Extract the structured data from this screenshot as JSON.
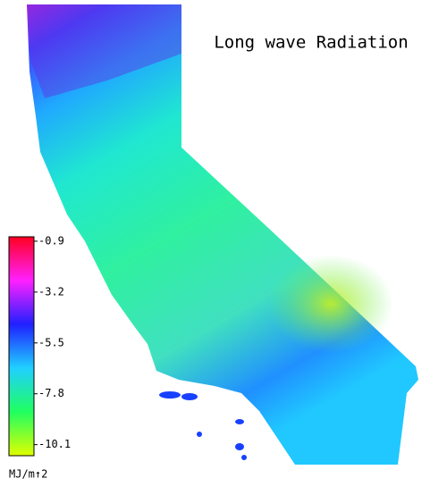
{
  "title": "Long wave Radiation",
  "colorbar": {
    "lim": [
      -0.7,
      -10.6
    ],
    "ticks": [
      -0.9,
      -3.2,
      -5.5,
      -7.8,
      -10.1
    ],
    "colors": [
      "#ff0020",
      "#ff20ff",
      "#2020ff",
      "#20d0ff",
      "#20ff60",
      "#e0ff00"
    ],
    "unit": "MJ/m↑2"
  }
}
